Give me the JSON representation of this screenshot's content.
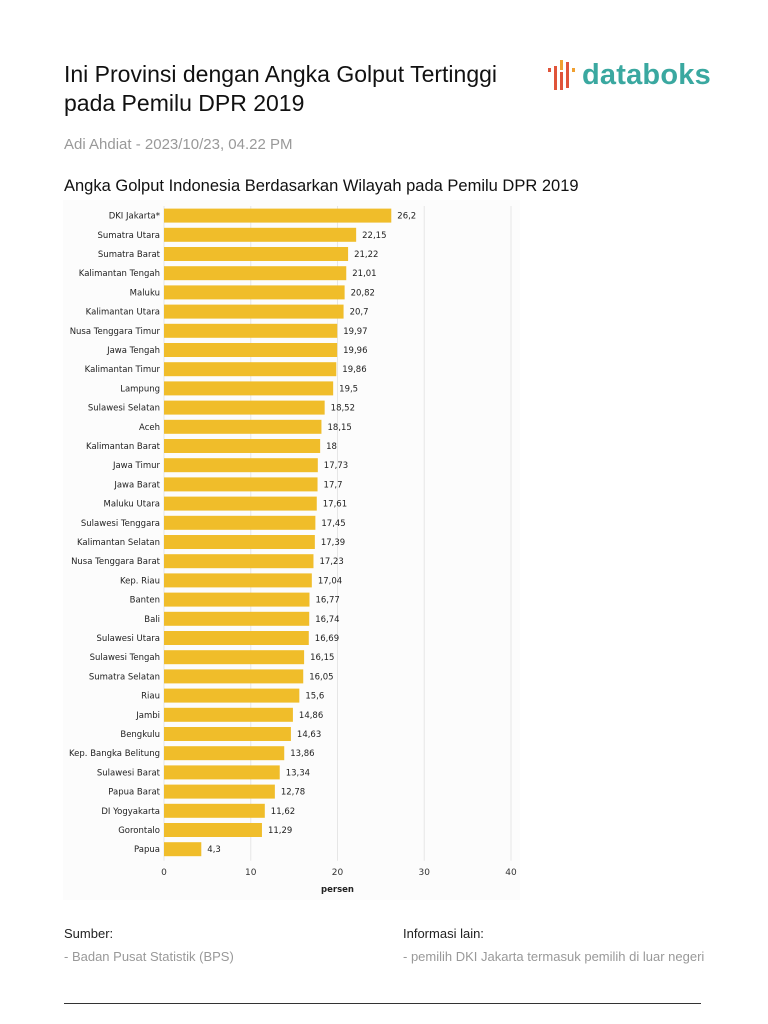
{
  "header": {
    "title": "Ini Provinsi dengan Angka Golput Tertinggi pada Pemilu DPR 2019",
    "logo": "databoks",
    "byline": "Adi Ahdiat - 2023/10/23, 04.22 PM"
  },
  "chart_data": {
    "type": "bar",
    "orientation": "horizontal",
    "title": "Angka Golput Indonesia Berdasarkan Wilayah pada Pemilu DPR 2019",
    "xlabel": "persen",
    "ylabel": "",
    "xlim": [
      0,
      40
    ],
    "xticks": [
      "0",
      "10",
      "20",
      "30",
      "40"
    ],
    "grid": true,
    "bar_color": "#f0bd2a",
    "categories": [
      "DKI Jakarta*",
      "Sumatra Utara",
      "Sumatra Barat",
      "Kalimantan Tengah",
      "Maluku",
      "Kalimantan Utara",
      "Nusa Tenggara Timur",
      "Jawa Tengah",
      "Kalimantan Timur",
      "Lampung",
      "Sulawesi Selatan",
      "Aceh",
      "Kalimantan Barat",
      "Jawa Timur",
      "Jawa Barat",
      "Maluku Utara",
      "Sulawesi Tenggara",
      "Kalimantan Selatan",
      "Nusa Tenggara Barat",
      "Kep. Riau",
      "Banten",
      "Bali",
      "Sulawesi Utara",
      "Sulawesi Tengah",
      "Sumatra Selatan",
      "Riau",
      "Jambi",
      "Bengkulu",
      "Kep. Bangka Belitung",
      "Sulawesi Barat",
      "Papua Barat",
      "DI Yogyakarta",
      "Gorontalo",
      "Papua"
    ],
    "values": [
      26.2,
      22.15,
      21.22,
      21.01,
      20.82,
      20.7,
      19.97,
      19.96,
      19.86,
      19.5,
      18.52,
      18.15,
      18,
      17.73,
      17.7,
      17.61,
      17.45,
      17.39,
      17.23,
      17.04,
      16.77,
      16.74,
      16.69,
      16.15,
      16.05,
      15.6,
      14.86,
      14.63,
      13.86,
      13.34,
      12.78,
      11.62,
      11.29,
      4.3
    ],
    "value_labels": [
      "26,2",
      "22,15",
      "21,22",
      "21,01",
      "20,82",
      "20,7",
      "19,97",
      "19,96",
      "19,86",
      "19,5",
      "18,52",
      "18,15",
      "18",
      "17,73",
      "17,7",
      "17,61",
      "17,45",
      "17,39",
      "17,23",
      "17,04",
      "16,77",
      "16,74",
      "16,69",
      "16,15",
      "16,05",
      "15,6",
      "14,86",
      "14,63",
      "13,86",
      "13,34",
      "12,78",
      "11,62",
      "11,29",
      "4,3"
    ]
  },
  "footer": {
    "source_label": "Sumber:",
    "source_value": "- Badan Pusat Statistik (BPS)",
    "info_label": "Informasi lain:",
    "info_value": "- pemilih DKI Jakarta termasuk pemilih di luar negeri"
  }
}
